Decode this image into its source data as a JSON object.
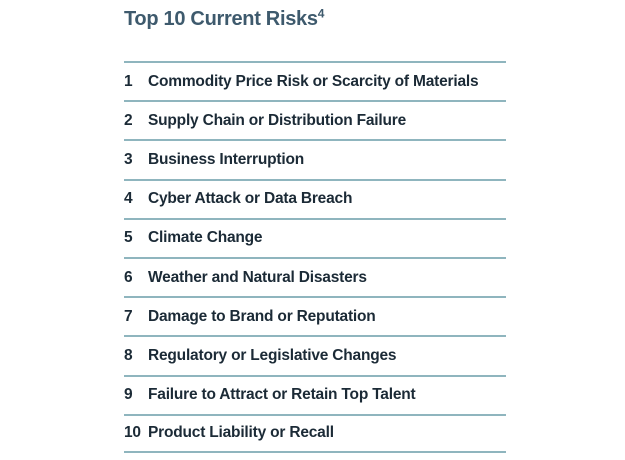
{
  "figure": {
    "title": "Top 10 Current Risks",
    "title_superscript": "4"
  },
  "risks": [
    {
      "rank": "1",
      "label": "Commodity Price Risk or Scarcity of Materials"
    },
    {
      "rank": "2",
      "label": "Supply Chain or Distribution Failure"
    },
    {
      "rank": "3",
      "label": "Business Interruption"
    },
    {
      "rank": "4",
      "label": "Cyber Attack or Data Breach"
    },
    {
      "rank": "5",
      "label": "Climate Change"
    },
    {
      "rank": "6",
      "label": "Weather and Natural Disasters"
    },
    {
      "rank": "7",
      "label": "Damage to Brand or Reputation"
    },
    {
      "rank": "8",
      "label": "Regulatory or Legislative Changes"
    },
    {
      "rank": "9",
      "label": "Failure to Attract or Retain Top Talent"
    },
    {
      "rank": "10",
      "label": "Product Liability or Recall"
    }
  ],
  "colors": {
    "title": "#3E5A6D",
    "row_text": "#1B2A36",
    "divider": "#8FB5BE",
    "background": "#FFFFFF"
  }
}
